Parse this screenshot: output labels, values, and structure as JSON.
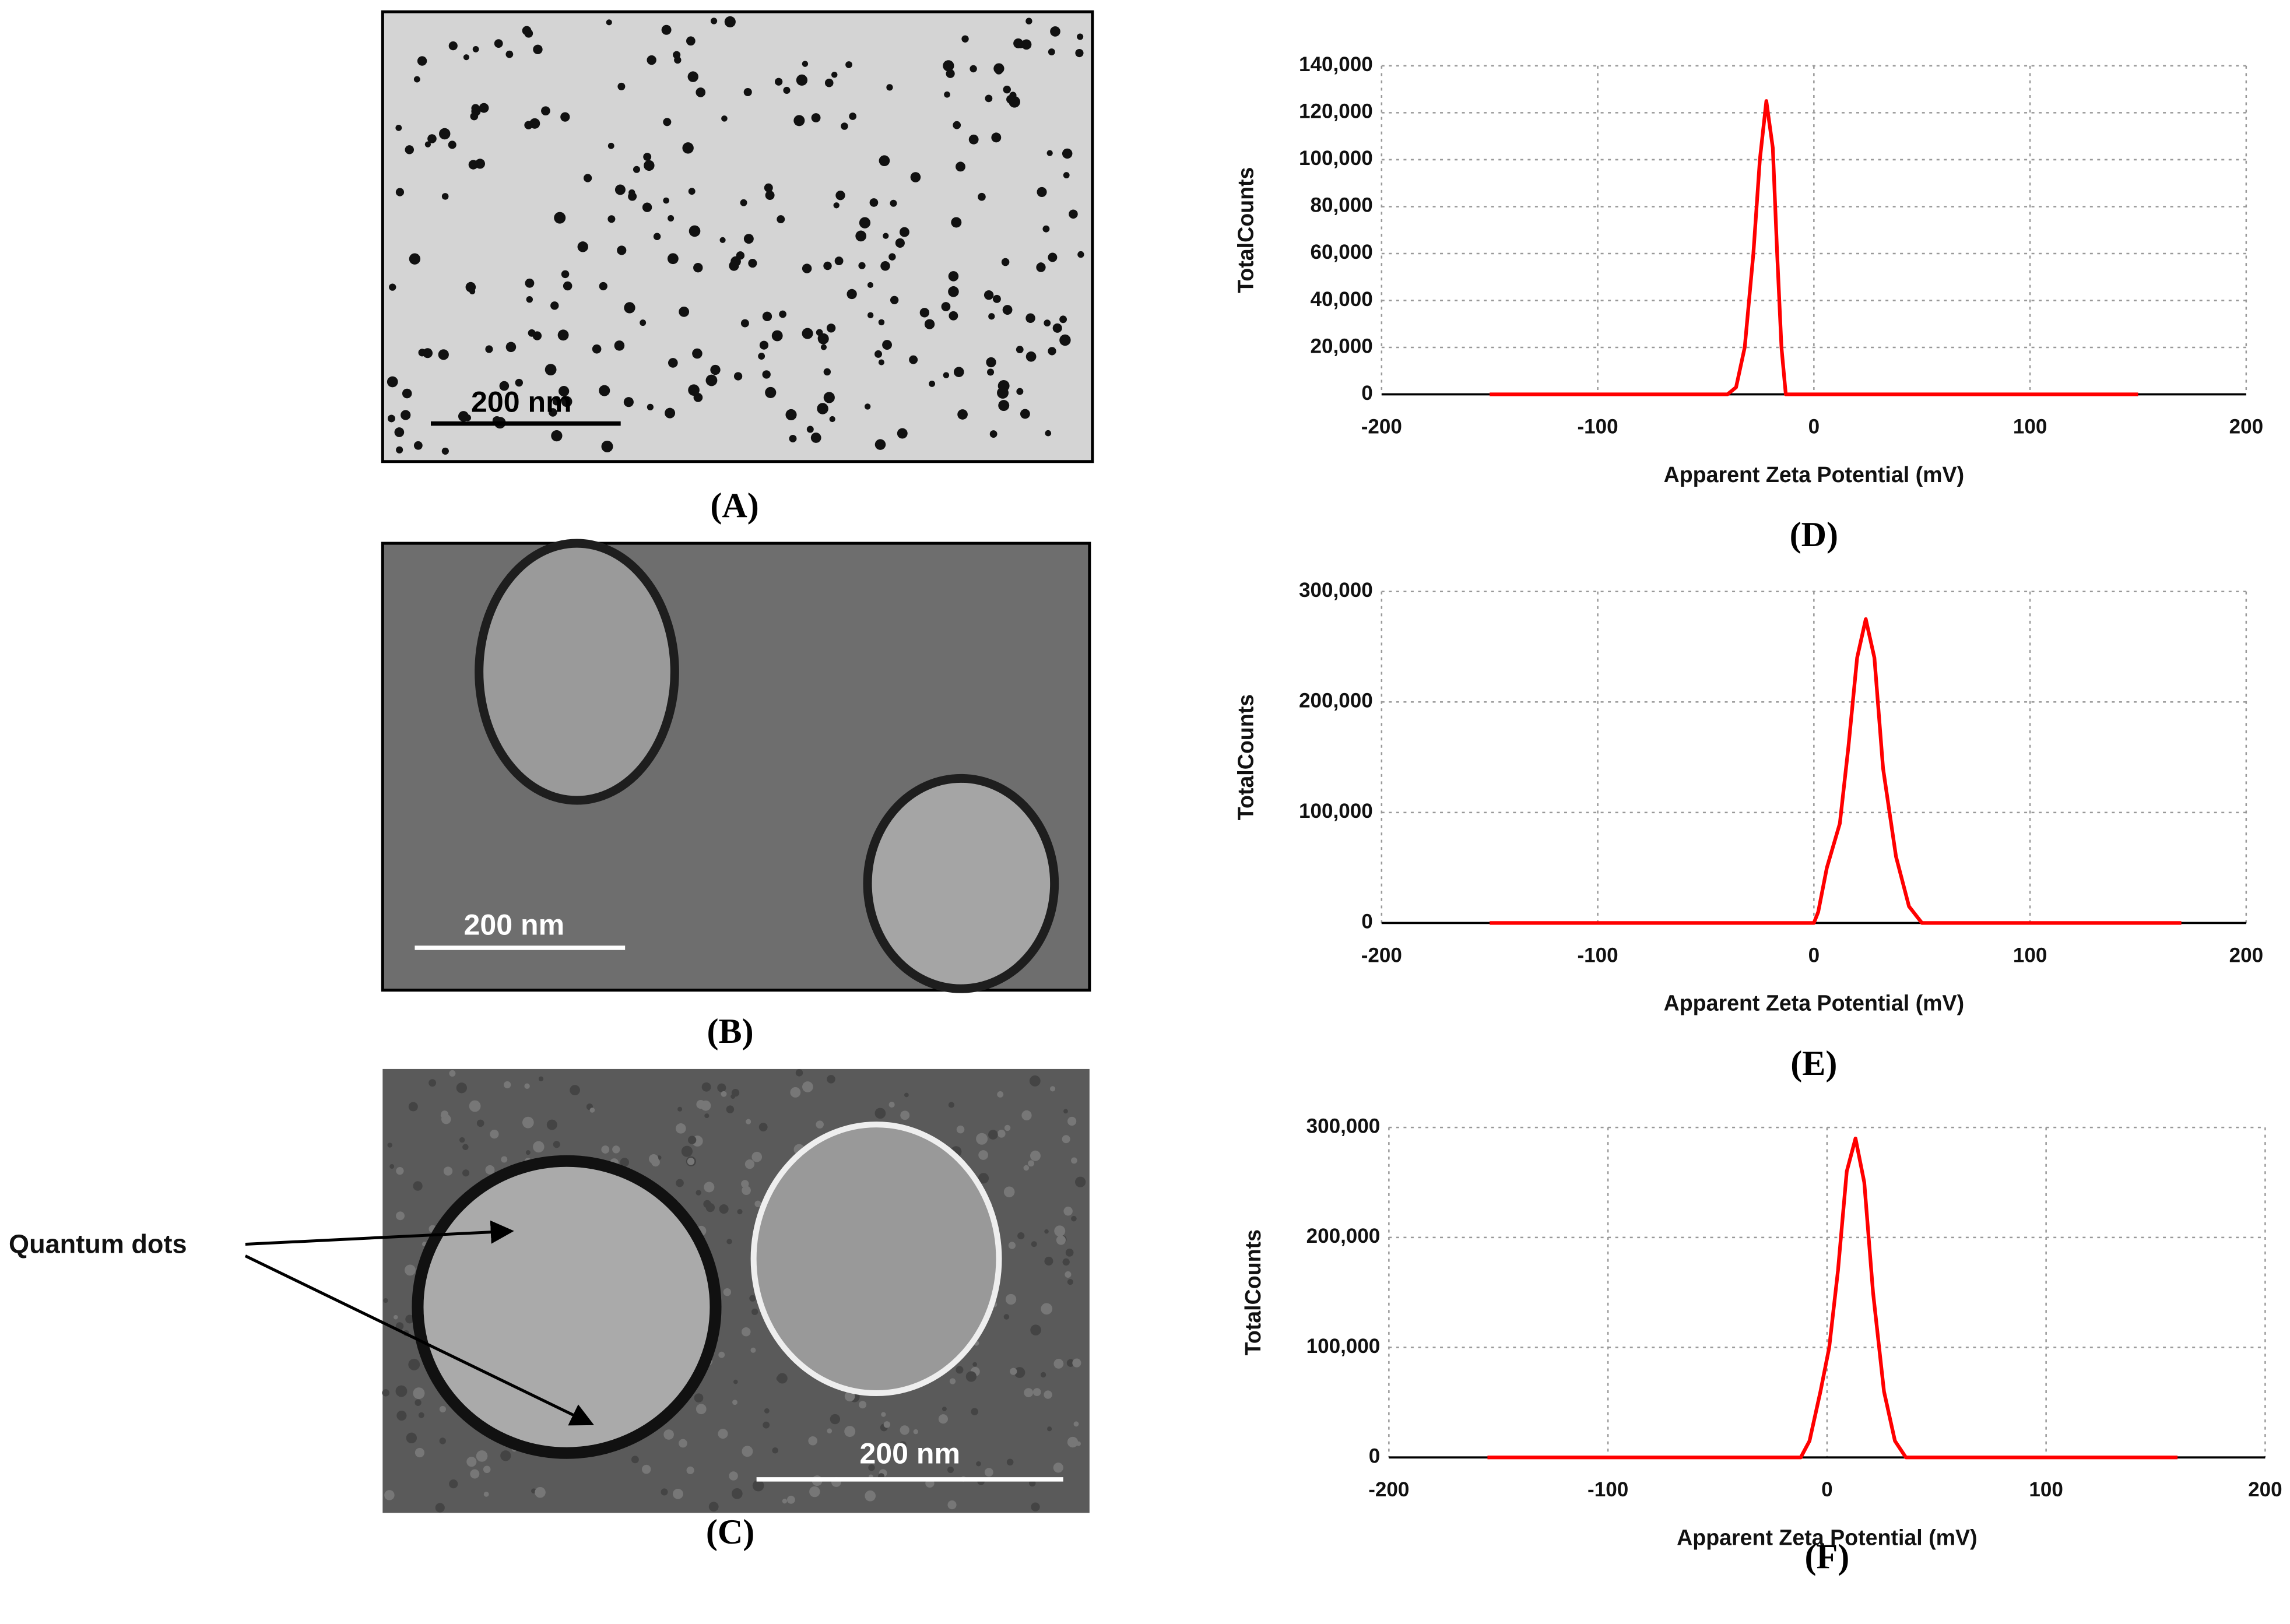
{
  "panels": [
    {
      "label": "(A)",
      "scale_bar": "200 nm"
    },
    {
      "label": "(B)",
      "scale_bar": "200 nm"
    },
    {
      "label": "(C)",
      "scale_bar": "200 nm"
    }
  ],
  "annotation": "Quantum dots",
  "chart_data": [
    {
      "type": "line",
      "panel_label": "(D)",
      "xlabel": "Apparent Zeta Potential (mV)",
      "ylabel": "TotalCounts",
      "grid": true,
      "xlim": [
        -200,
        200
      ],
      "xticks": [
        -200,
        -100,
        0,
        100,
        200
      ],
      "ylim": [
        0,
        140000
      ],
      "yticks": [
        0,
        {
          "value": 20000,
          "label": "20,000"
        },
        {
          "value": 40000,
          "label": "40,000"
        },
        {
          "value": 60000,
          "label": "60,000"
        },
        {
          "value": 80000,
          "label": "80,000"
        },
        {
          "value": 100000,
          "label": "100,000"
        },
        {
          "value": 120000,
          "label": "120,000"
        },
        {
          "value": 140000,
          "label": "140,000"
        }
      ],
      "series": [
        {
          "color": "#ff0000",
          "x": [
            -150,
            -40,
            -36,
            -32,
            -28,
            -25,
            -22,
            -19,
            -17,
            -15,
            -13,
            150
          ],
          "values": [
            0,
            0,
            3000,
            20000,
            60000,
            100000,
            125000,
            105000,
            60000,
            20000,
            0,
            0
          ]
        }
      ]
    },
    {
      "type": "line",
      "panel_label": "(E)",
      "xlabel": "Apparent Zeta Potential (mV)",
      "ylabel": "TotalCounts",
      "grid": true,
      "xlim": [
        -200,
        200
      ],
      "xticks": [
        -200,
        -100,
        0,
        100,
        200
      ],
      "ylim": [
        0,
        300000
      ],
      "yticks": [
        0,
        {
          "value": 100000,
          "label": "100,000"
        },
        {
          "value": 200000,
          "label": "200,000"
        },
        {
          "value": 300000,
          "label": "300,000"
        }
      ],
      "series": [
        {
          "color": "#ff0000",
          "x": [
            -150,
            0,
            2,
            6,
            12,
            16,
            20,
            24,
            28,
            32,
            38,
            44,
            50,
            170
          ],
          "values": [
            0,
            0,
            10000,
            50000,
            90000,
            160000,
            240000,
            275000,
            240000,
            140000,
            60000,
            15000,
            0,
            0
          ]
        }
      ]
    },
    {
      "type": "line",
      "panel_label": "(F)",
      "xlabel": "Apparent Zeta Potential (mV)",
      "ylabel": "TotalCounts",
      "grid": true,
      "xlim": [
        -200,
        200
      ],
      "xticks": [
        -200,
        -100,
        0,
        100,
        200
      ],
      "ylim": [
        0,
        300000
      ],
      "yticks": [
        0,
        {
          "value": 100000,
          "label": "100,000"
        },
        {
          "value": 200000,
          "label": "200,000"
        },
        {
          "value": 300000,
          "label": "300,000"
        }
      ],
      "series": [
        {
          "color": "#ff0000",
          "x": [
            -155,
            -12,
            -8,
            -3,
            1,
            5,
            9,
            13,
            17,
            21,
            26,
            31,
            36,
            160
          ],
          "values": [
            0,
            0,
            15000,
            60000,
            100000,
            170000,
            260000,
            290000,
            250000,
            150000,
            60000,
            15000,
            0,
            0
          ]
        }
      ]
    }
  ]
}
